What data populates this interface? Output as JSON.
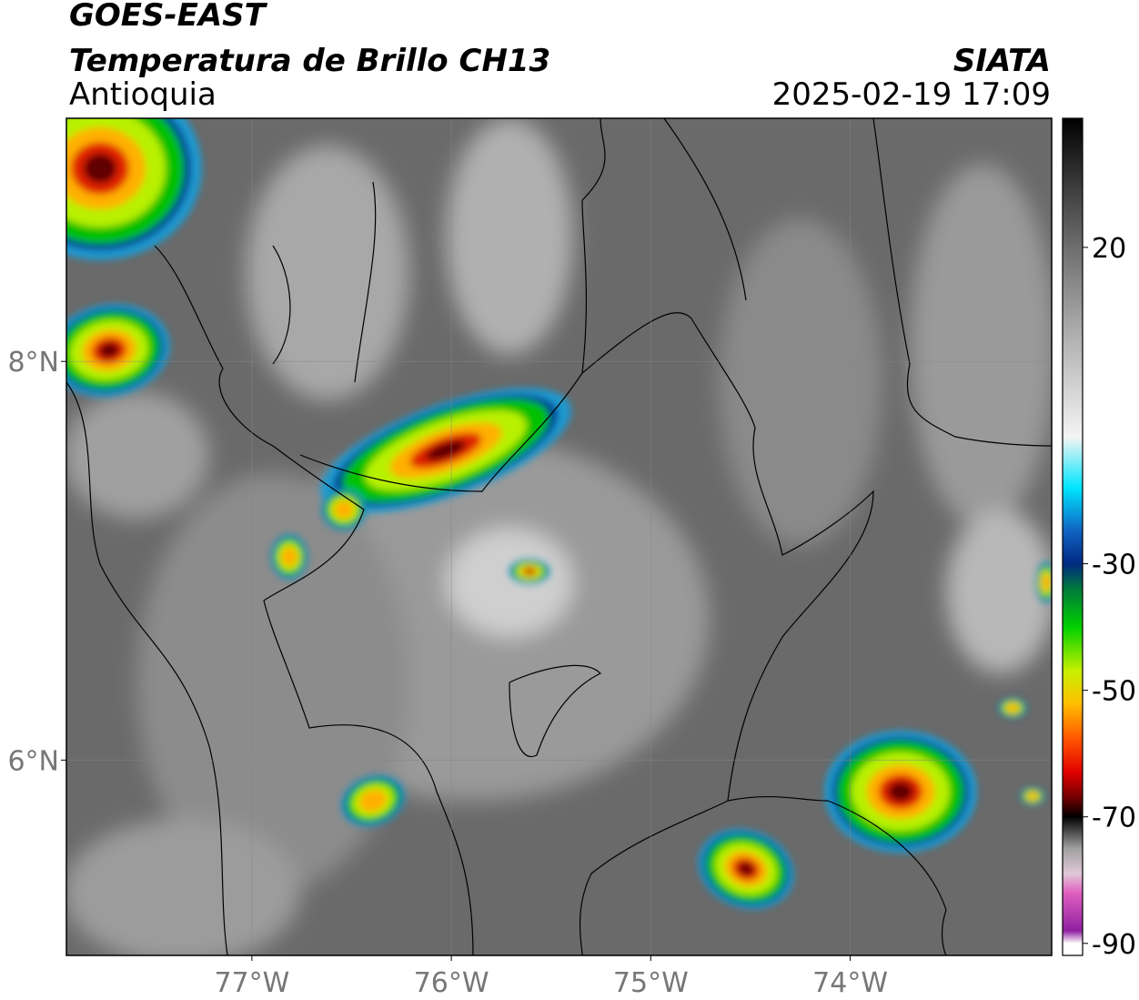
{
  "header": {
    "line1": "GOES-EAST",
    "title": "Temperatura de Brillo CH13",
    "region": "Antioquia",
    "source": "SIATA",
    "datetime": "2025-02-19 17:09"
  },
  "map": {
    "xlim": [
      -77.93,
      -72.99
    ],
    "ylim": [
      5.02,
      9.22
    ],
    "xticks": [
      {
        "value": -77,
        "label": "77°W"
      },
      {
        "value": -76,
        "label": "76°W"
      },
      {
        "value": -75,
        "label": "75°W"
      },
      {
        "value": -74,
        "label": "74°W"
      }
    ],
    "yticks": [
      {
        "value": 8,
        "label": "8°N"
      },
      {
        "value": 6,
        "label": "6°N"
      }
    ],
    "grid": true
  },
  "colorbar": {
    "lim": [
      -91.9,
      40.4
    ],
    "ticks": [
      20,
      -30,
      -50,
      -70,
      -90
    ],
    "colormap": [
      {
        "value": 40.4,
        "color": "#000000"
      },
      {
        "value": 30,
        "color": "#3a3a3a"
      },
      {
        "value": 20,
        "color": "#6e6e6e"
      },
      {
        "value": 5,
        "color": "#b4b4b4"
      },
      {
        "value": -10,
        "color": "#f4f4f4"
      },
      {
        "value": -18,
        "color": "#00e5ff"
      },
      {
        "value": -25,
        "color": "#1060c0"
      },
      {
        "value": -30,
        "color": "#002a80"
      },
      {
        "value": -34,
        "color": "#007a3a"
      },
      {
        "value": -40,
        "color": "#00d000"
      },
      {
        "value": -47,
        "color": "#c8f000"
      },
      {
        "value": -52,
        "color": "#ffc000"
      },
      {
        "value": -58,
        "color": "#ff5000"
      },
      {
        "value": -63,
        "color": "#e00000"
      },
      {
        "value": -67,
        "color": "#700000"
      },
      {
        "value": -70,
        "color": "#000000"
      },
      {
        "value": -75,
        "color": "#a0a0a0"
      },
      {
        "value": -79,
        "color": "#e0c8d8"
      },
      {
        "value": -82,
        "color": "#e060c0"
      },
      {
        "value": -88,
        "color": "#9020a0"
      },
      {
        "value": -90,
        "color": "#ffffff"
      }
    ]
  }
}
